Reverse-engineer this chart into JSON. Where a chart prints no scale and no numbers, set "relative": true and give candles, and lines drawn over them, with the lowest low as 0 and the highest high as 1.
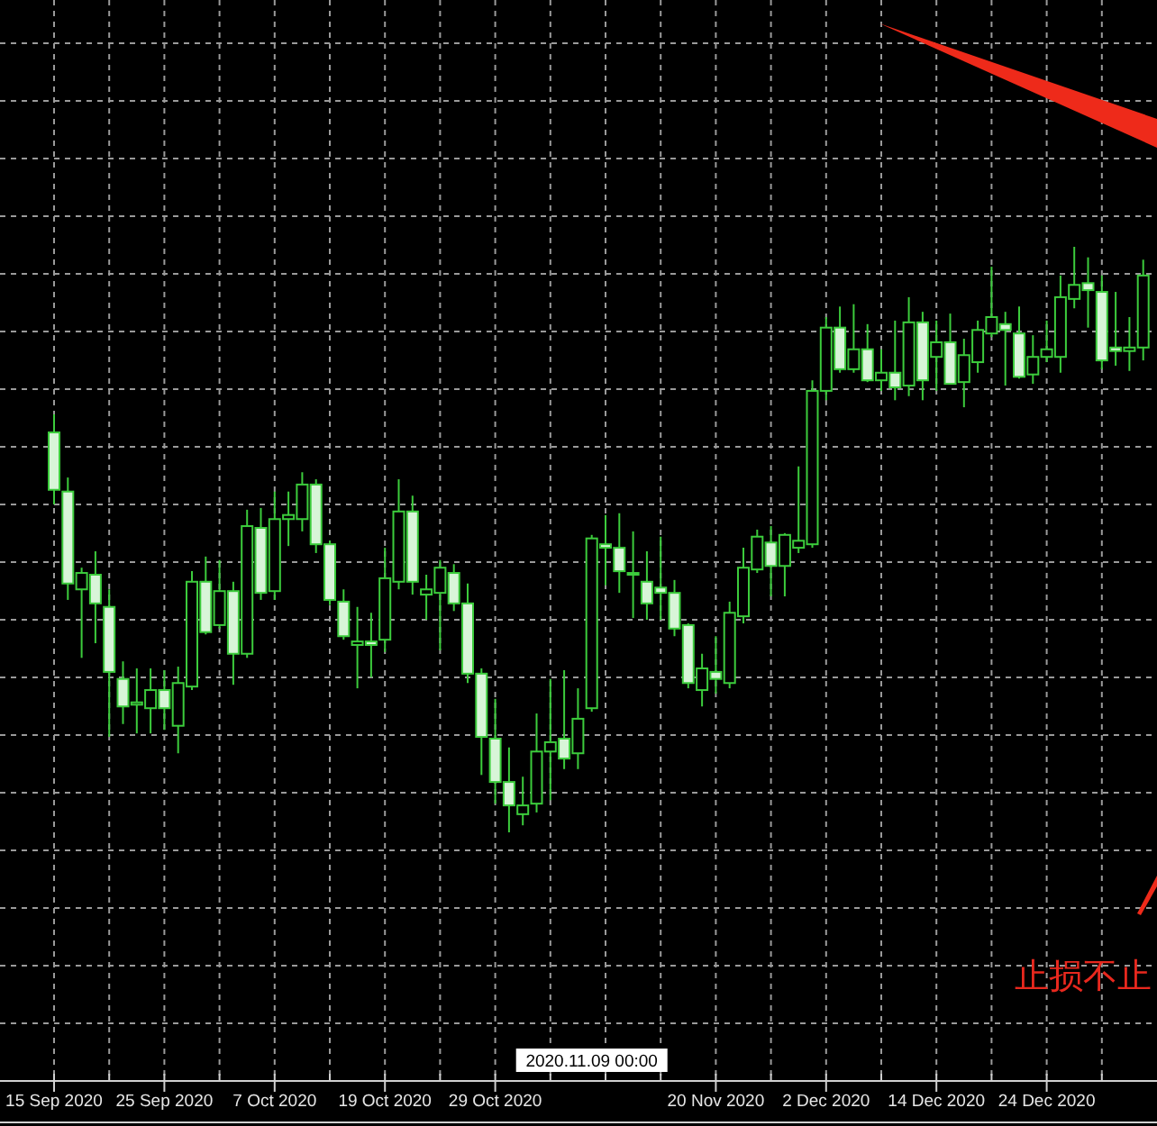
{
  "chart_data": {
    "type": "candlestick",
    "relative": true,
    "grid": true,
    "legend": false,
    "tick_labels": "x",
    "color": "#3ccc3c",
    "categories": [
      "15 Sep 2020",
      null,
      null,
      null,
      null,
      null,
      null,
      null,
      "25 Sep 2020",
      null,
      null,
      null,
      null,
      null,
      null,
      null,
      "7 Oct 2020",
      null,
      null,
      null,
      null,
      null,
      null,
      null,
      "19 Oct 2020",
      null,
      null,
      null,
      null,
      null,
      null,
      null,
      "29 Oct 2020",
      null,
      null,
      null,
      null,
      null,
      null,
      null,
      null,
      null,
      null,
      null,
      null,
      null,
      null,
      null,
      "20 Nov 2020",
      null,
      null,
      null,
      null,
      null,
      null,
      null,
      "2 Dec 2020",
      null,
      null,
      null,
      null,
      null,
      null,
      null,
      "14 Dec 2020",
      null,
      null,
      null,
      null,
      null,
      null,
      null,
      "24 Dec 2020",
      null,
      null,
      null,
      null,
      null,
      null,
      null
    ],
    "ohlc": [
      [
        0.683,
        0.714,
        0.56,
        0.585
      ],
      [
        0.582,
        0.606,
        0.397,
        0.425
      ],
      [
        0.415,
        0.452,
        0.298,
        0.443
      ],
      [
        0.44,
        0.48,
        0.323,
        0.391
      ],
      [
        0.385,
        0.415,
        0.163,
        0.274
      ],
      [
        0.262,
        0.292,
        0.185,
        0.215
      ],
      [
        0.218,
        0.28,
        0.169,
        0.222
      ],
      [
        0.212,
        0.28,
        0.169,
        0.243
      ],
      [
        0.243,
        0.277,
        0.175,
        0.212
      ],
      [
        0.182,
        0.283,
        0.135,
        0.255
      ],
      [
        0.249,
        0.446,
        0.243,
        0.428
      ],
      [
        0.428,
        0.471,
        0.338,
        0.342
      ],
      [
        0.354,
        0.465,
        0.348,
        0.412
      ],
      [
        0.412,
        0.428,
        0.252,
        0.305
      ],
      [
        0.305,
        0.551,
        0.298,
        0.523
      ],
      [
        0.52,
        0.554,
        0.397,
        0.409
      ],
      [
        0.412,
        0.582,
        0.397,
        0.535
      ],
      [
        0.535,
        0.582,
        0.489,
        0.542
      ],
      [
        0.535,
        0.615,
        0.514,
        0.594
      ],
      [
        0.594,
        0.603,
        0.477,
        0.492
      ],
      [
        0.492,
        0.498,
        0.388,
        0.397
      ],
      [
        0.394,
        0.415,
        0.329,
        0.335
      ],
      [
        0.32,
        0.385,
        0.246,
        0.326
      ],
      [
        0.326,
        0.375,
        0.265,
        0.32
      ],
      [
        0.329,
        0.486,
        0.308,
        0.434
      ],
      [
        0.428,
        0.603,
        0.415,
        0.548
      ],
      [
        0.548,
        0.575,
        0.406,
        0.428
      ],
      [
        0.406,
        0.44,
        0.363,
        0.415
      ],
      [
        0.409,
        0.465,
        0.311,
        0.452
      ],
      [
        0.443,
        0.458,
        0.378,
        0.391
      ],
      [
        0.391,
        0.425,
        0.255,
        0.271
      ],
      [
        0.271,
        0.28,
        0.098,
        0.163
      ],
      [
        0.16,
        0.228,
        0.049,
        0.086
      ],
      [
        0.086,
        0.145,
        0,
        0.046
      ],
      [
        0.031,
        0.095,
        0.012,
        0.046
      ],
      [
        0.049,
        0.203,
        0.034,
        0.138
      ],
      [
        0.138,
        0.262,
        0.055,
        0.154
      ],
      [
        0.16,
        0.277,
        0.108,
        0.126
      ],
      [
        0.135,
        0.246,
        0.108,
        0.194
      ],
      [
        0.212,
        0.508,
        0.206,
        0.502
      ],
      [
        0.492,
        0.542,
        0.422,
        0.486
      ],
      [
        0.486,
        0.545,
        0.409,
        0.446
      ],
      [
        0.443,
        0.514,
        0.366,
        0.44
      ],
      [
        0.428,
        0.48,
        0.363,
        0.391
      ],
      [
        0.418,
        0.505,
        0.363,
        0.409
      ],
      [
        0.409,
        0.431,
        0.335,
        0.348
      ],
      [
        0.354,
        0.357,
        0.246,
        0.255
      ],
      [
        0.243,
        0.305,
        0.215,
        0.28
      ],
      [
        0.274,
        0.335,
        0.237,
        0.262
      ],
      [
        0.255,
        0.394,
        0.246,
        0.375
      ],
      [
        0.369,
        0.486,
        0.357,
        0.452
      ],
      [
        0.449,
        0.517,
        0.443,
        0.505
      ],
      [
        0.495,
        0.523,
        0.403,
        0.455
      ],
      [
        0.455,
        0.511,
        0.403,
        0.508
      ],
      [
        0.486,
        0.625,
        0.477,
        0.498
      ],
      [
        0.492,
        0.772,
        0.486,
        0.754
      ],
      [
        0.754,
        0.88,
        0.738,
        0.862
      ],
      [
        0.862,
        0.898,
        0.785,
        0.791
      ],
      [
        0.791,
        0.902,
        0.785,
        0.825
      ],
      [
        0.825,
        0.868,
        0.769,
        0.772
      ],
      [
        0.772,
        0.825,
        0.754,
        0.785
      ],
      [
        0.785,
        0.874,
        0.738,
        0.76
      ],
      [
        0.763,
        0.914,
        0.745,
        0.871
      ],
      [
        0.871,
        0.889,
        0.738,
        0.772
      ],
      [
        0.812,
        0.874,
        0.754,
        0.837
      ],
      [
        0.837,
        0.886,
        0.766,
        0.766
      ],
      [
        0.769,
        0.843,
        0.726,
        0.815
      ],
      [
        0.803,
        0.874,
        0.785,
        0.858
      ],
      [
        0.852,
        0.966,
        0.846,
        0.88
      ],
      [
        0.868,
        0.889,
        0.763,
        0.858
      ],
      [
        0.852,
        0.898,
        0.775,
        0.778
      ],
      [
        0.782,
        0.849,
        0.766,
        0.812
      ],
      [
        0.812,
        0.874,
        0.803,
        0.825
      ],
      [
        0.812,
        0.951,
        0.785,
        0.914
      ],
      [
        0.911,
        1,
        0.895,
        0.935
      ],
      [
        0.938,
        0.982,
        0.862,
        0.926
      ],
      [
        0.923,
        0.951,
        0.791,
        0.806
      ],
      [
        0.828,
        0.923,
        0.797,
        0.822
      ],
      [
        0.822,
        0.88,
        0.788,
        0.828
      ],
      [
        0.828,
        0.978,
        0.806,
        0.951
      ]
    ],
    "annotations": [
      "止损不止",
      "2020.11.09 00:00"
    ]
  }
}
